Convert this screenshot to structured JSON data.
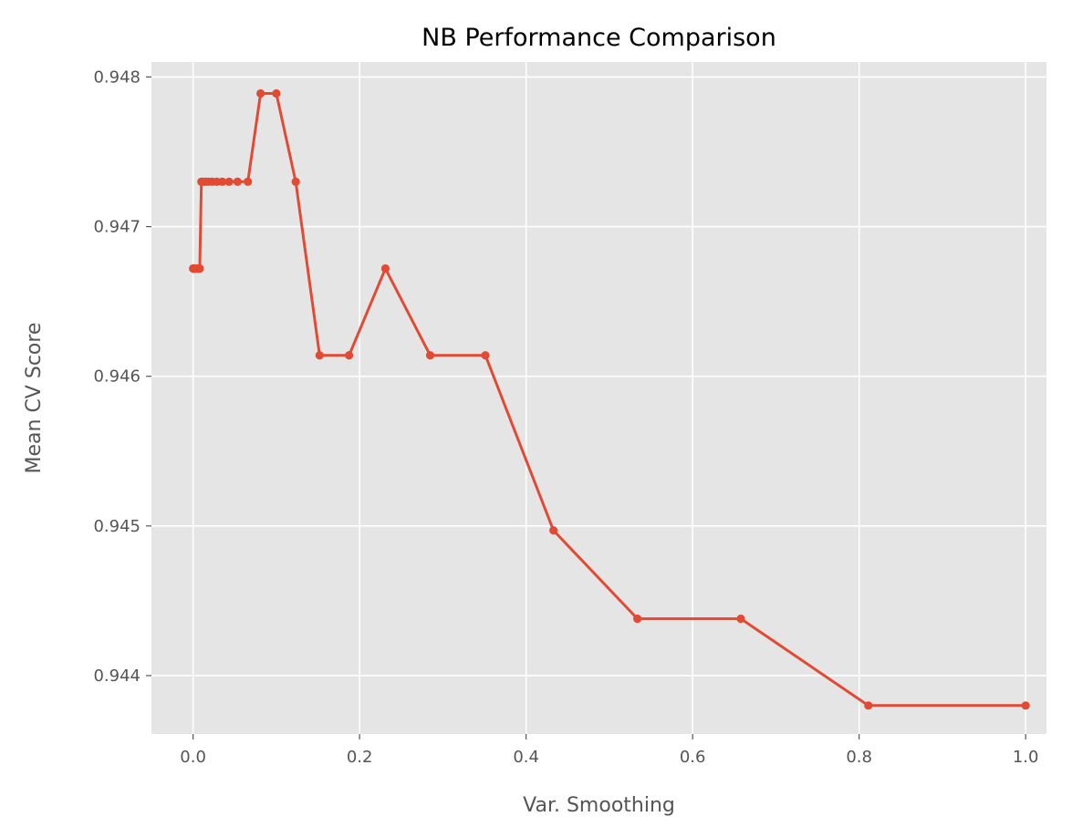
{
  "chart_data": {
    "type": "line",
    "title": "NB Performance Comparison",
    "xlabel": "Var. Smoothing",
    "ylabel": "Mean CV Score",
    "xlim": [
      -0.05,
      1.025
    ],
    "ylim": [
      0.94361,
      0.9481
    ],
    "grid": true,
    "x_ticks": [
      0.0,
      0.2,
      0.4,
      0.6,
      0.8,
      1.0
    ],
    "x_tick_labels": [
      "0.0",
      "0.2",
      "0.4",
      "0.6",
      "0.8",
      "1.0"
    ],
    "y_ticks": [
      0.944,
      0.945,
      0.946,
      0.947,
      0.948
    ],
    "y_tick_labels": [
      "0.944",
      "0.945",
      "0.946",
      "0.947",
      "0.948"
    ],
    "colors": {
      "line": "#E24A33",
      "plot_bg": "#E5E5E5",
      "grid": "#FFFFFF"
    },
    "series": [
      {
        "x": [
          0.0,
          0.0005,
          0.001,
          0.0015,
          0.002,
          0.003,
          0.004,
          0.005,
          0.0065,
          0.008,
          0.01,
          0.0125,
          0.0152,
          0.0187,
          0.0231,
          0.0285,
          0.0351,
          0.0433,
          0.0534,
          0.0658,
          0.0811,
          0.1,
          0.1233,
          0.152,
          0.1874,
          0.231,
          0.2848,
          0.3511,
          0.4329,
          0.5337,
          0.6579,
          0.8111,
          1.0
        ],
        "y": [
          0.94672,
          0.94672,
          0.94672,
          0.94672,
          0.94672,
          0.94672,
          0.94672,
          0.94672,
          0.94672,
          0.94672,
          0.9473,
          0.9473,
          0.9473,
          0.9473,
          0.9473,
          0.9473,
          0.9473,
          0.9473,
          0.9473,
          0.9473,
          0.94789,
          0.94789,
          0.9473,
          0.94614,
          0.94614,
          0.94672,
          0.94614,
          0.94614,
          0.94497,
          0.94438,
          0.94438,
          0.9438,
          0.9438
        ]
      }
    ]
  }
}
